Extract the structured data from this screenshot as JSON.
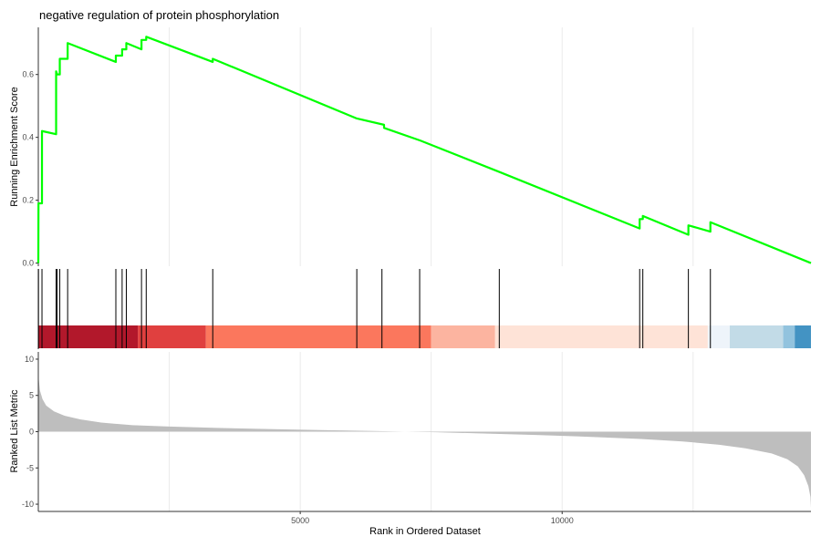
{
  "chart_data": {
    "type": "line",
    "title": "negative regulation of protein phosphorylation",
    "xlabel": "Rank in Ordered Dataset",
    "x_ticks": [
      5000,
      10000
    ],
    "x_range": [
      0,
      14750
    ],
    "line_color": "#00ff00",
    "enrichment_score": {
      "ylabel": "Running Enrichment Score",
      "ylim": [
        -0.01,
        0.75
      ],
      "y_ticks": [
        0.0,
        0.2,
        0.4,
        0.6
      ],
      "x": [
        0,
        3,
        3,
        70,
        70,
        340,
        340,
        360,
        360,
        410,
        410,
        560,
        560,
        1480,
        1480,
        1600,
        1600,
        1680,
        1680,
        1970,
        1970,
        2060,
        2060,
        3330,
        3330,
        6080,
        6600,
        6600,
        7290,
        8800,
        8800,
        11480,
        11480,
        11540,
        11540,
        12410,
        12410,
        12830,
        12830,
        14750
      ],
      "y": [
        0.0,
        0.18,
        0.19,
        0.19,
        0.42,
        0.41,
        0.61,
        0.6,
        0.6,
        0.6,
        0.65,
        0.65,
        0.7,
        0.64,
        0.66,
        0.66,
        0.68,
        0.68,
        0.7,
        0.68,
        0.71,
        0.71,
        0.72,
        0.64,
        0.65,
        0.46,
        0.44,
        0.43,
        0.39,
        0.29,
        0.29,
        0.11,
        0.14,
        0.14,
        0.15,
        0.09,
        0.12,
        0.1,
        0.13,
        0.0
      ]
    },
    "hits": [
      3,
      70,
      340,
      360,
      410,
      560,
      1480,
      1600,
      1680,
      1970,
      2060,
      3330,
      6080,
      6560,
      7280,
      8800,
      11480,
      11540,
      12410,
      12830
    ],
    "color_band": [
      {
        "x_start": 0,
        "x_end": 1900,
        "color": "#b2182b"
      },
      {
        "x_start": 1900,
        "x_end": 3200,
        "color": "#e0403f"
      },
      {
        "x_start": 3200,
        "x_end": 7500,
        "color": "#fb775d"
      },
      {
        "x_start": 7500,
        "x_end": 8720,
        "color": "#fcb4a0"
      },
      {
        "x_start": 8720,
        "x_end": 12780,
        "color": "#fee3d7"
      },
      {
        "x_start": 12780,
        "x_end": 13200,
        "color": "#eef4fa"
      },
      {
        "x_start": 13200,
        "x_end": 14220,
        "color": "#c2dbe7"
      },
      {
        "x_start": 14220,
        "x_end": 14440,
        "color": "#92c3de"
      },
      {
        "x_start": 14440,
        "x_end": 14750,
        "color": "#4393c3"
      }
    ],
    "ranked_metric": {
      "ylabel": "Ranked List Metric",
      "ylim": [
        -11,
        11
      ],
      "y_ticks": [
        10,
        5,
        0,
        -5,
        -10
      ],
      "x": [
        0,
        5,
        30,
        80,
        150,
        300,
        500,
        800,
        1200,
        1800,
        2500,
        3500,
        4500,
        5500,
        6500,
        7000,
        7600,
        8500,
        9500,
        10500,
        11500,
        12300,
        13000,
        13500,
        14000,
        14300,
        14500,
        14620,
        14700,
        14740,
        14750
      ],
      "y": [
        10.5,
        7.5,
        5.7,
        4.5,
        3.6,
        2.8,
        2.2,
        1.7,
        1.25,
        0.9,
        0.7,
        0.5,
        0.35,
        0.2,
        0.08,
        0.0,
        -0.08,
        -0.25,
        -0.45,
        -0.7,
        -1.0,
        -1.35,
        -1.8,
        -2.3,
        -3.0,
        -3.8,
        -4.8,
        -6.0,
        -7.5,
        -9.0,
        -10.5
      ]
    }
  }
}
